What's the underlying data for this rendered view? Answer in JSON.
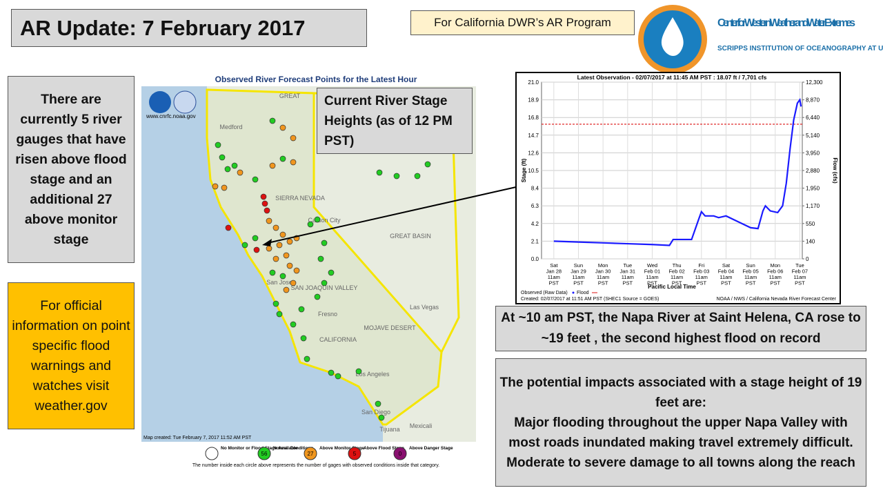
{
  "header": {
    "title": "AR Update: 7 February 2017",
    "program": "For California DWR’s AR Program",
    "org_name": "Center for Western Weather and Water Extremes",
    "org_sub": "SCRIPPS INSTITUTION OF OCEANOGRAPHY AT UC SAN DIEGO"
  },
  "left_box": "There are currently 5 river gauges that have risen above flood stage and an additional 27 above monitor stage",
  "official_box": "For official information on point specific flood warnings and watches visit weather.gov",
  "callout": "Current River Stage Heights (as of 12 PM PST)",
  "map": {
    "title": "Observed River Forecast Points for the Latest Hour",
    "url": "www.cnrfc.noaa.gov",
    "created": "Map created: Tue February 7, 2017 11:52 AM PST",
    "labels": [
      "Medford",
      "GREAT",
      "Carson City",
      "GREAT BASIN",
      "Las Vegas",
      "MOJAVE DESERT",
      "CALIFORNIA",
      "Fresno",
      "San Jose",
      "Los Angeles",
      "San Diego",
      "Tijuana",
      "Mexicali",
      "SAN JOAQUIN VALLEY",
      "SIERRA NEVADA"
    ],
    "legend": [
      {
        "label": "No Monitor or Flood Stage Available",
        "color": "#ffffff"
      },
      {
        "label": "Normal Conditions",
        "count": 56,
        "color": "#22cc22"
      },
      {
        "label": "Above Monitor Stage",
        "count": 27,
        "color": "#f0961e"
      },
      {
        "label": "Above Flood Stage",
        "count": 5,
        "color": "#dd1111"
      },
      {
        "label": "Above Danger Stage",
        "count": 0,
        "color": "#8a1070"
      }
    ],
    "footnote": "The number inside each circle above represents the number of gages with observed conditions inside that category."
  },
  "hydrograph": {
    "type": "line",
    "title": "Latest Observation - 02/07/2017 at 11:45 AM PST : 18.07 ft / 7,701 cfs",
    "y_label": "Stage (ft)",
    "y2_label": "Flow (cfs)",
    "x_label": "Pacific Local Time",
    "categories": [
      [
        "Sat",
        "Jan 28",
        "11am",
        "PST"
      ],
      [
        "Sun",
        "Jan 29",
        "11am",
        "PST"
      ],
      [
        "Mon",
        "Jan 30",
        "11am",
        "PST"
      ],
      [
        "Tue",
        "Jan 31",
        "11am",
        "PST"
      ],
      [
        "Wed",
        "Feb 01",
        "11am",
        "PST"
      ],
      [
        "Thu",
        "Feb 02",
        "11am",
        "PST"
      ],
      [
        "Fri",
        "Feb 03",
        "11am",
        "PST"
      ],
      [
        "Sat",
        "Feb 04",
        "11am",
        "PST"
      ],
      [
        "Sun",
        "Feb 05",
        "11am",
        "PST"
      ],
      [
        "Mon",
        "Feb 06",
        "11am",
        "PST"
      ],
      [
        "Tue",
        "Feb 07",
        "11am",
        "PST"
      ]
    ],
    "xlim": [
      -0.5,
      10.1
    ],
    "ylim": [
      0,
      21
    ],
    "yticks": [
      {
        "value": 0,
        "label": "0.0"
      },
      {
        "value": 2.1,
        "label": "2.1"
      },
      {
        "value": 4.2,
        "label": "4.2"
      },
      {
        "value": 6.3,
        "label": "6.3"
      },
      {
        "value": 8.4,
        "label": "8.4"
      },
      {
        "value": 10.5,
        "label": "10.5"
      },
      {
        "value": 12.6,
        "label": "12.6"
      },
      {
        "value": 14.7,
        "label": "14.7"
      },
      {
        "value": 16.8,
        "label": "16.8"
      },
      {
        "value": 18.9,
        "label": "18.9"
      },
      {
        "value": 21,
        "label": "21.0"
      }
    ],
    "y2ticks": [
      0,
      140,
      550,
      {
        "value": 1170,
        "label": "1,170"
      },
      {
        "value": 1950,
        "label": "1,950"
      },
      {
        "value": 2880,
        "label": "2,880"
      },
      {
        "value": 3950,
        "label": "3,950"
      },
      {
        "value": 5140,
        "label": "5,140"
      },
      {
        "value": 6440,
        "label": "6,440"
      },
      {
        "value": 8870,
        "label": "8,870"
      },
      {
        "value": 12300,
        "label": "12,300"
      }
    ],
    "flood_stage": 16,
    "flood_color": "#dd1111",
    "series": {
      "name": "Observed (Raw Data)",
      "color": "#1a1aff",
      "x": [
        0,
        1,
        2,
        3,
        4,
        4.7,
        4.85,
        5.6,
        5.9,
        6,
        6.15,
        6.5,
        6.7,
        7,
        7.5,
        8,
        8.3,
        8.5,
        8.6,
        8.8,
        9.1,
        9.3,
        9.45,
        9.6,
        9.75,
        9.9,
        10,
        10.05
      ],
      "values": [
        2.1,
        2,
        1.9,
        1.8,
        1.7,
        1.6,
        2.3,
        2.3,
        4.8,
        5.6,
        5.1,
        5.1,
        4.9,
        5.1,
        4.4,
        3.7,
        3.6,
        5.7,
        6.3,
        5.7,
        5.5,
        6.3,
        9,
        13,
        16.5,
        18.5,
        18.9,
        18.1
      ]
    },
    "flood_name": "Flood",
    "created": "Created: 02/07/2017 at 11:51 AM PST   (SHEC1 Source = GOES)",
    "source": "NOAA / NWS / California Nevada River Forecast Center"
  },
  "napa_box": "At ~10 am PST, the Napa River at Saint Helena, CA rose to ~19 feet , the second highest flood on record",
  "impacts_box": {
    "heading": "The potential impacts associated with a stage height of 19 feet are:",
    "body": "Major flooding throughout the upper Napa Valley with most roads inundated making travel extremely difficult. Moderate to severe damage to all towns along the reach"
  }
}
